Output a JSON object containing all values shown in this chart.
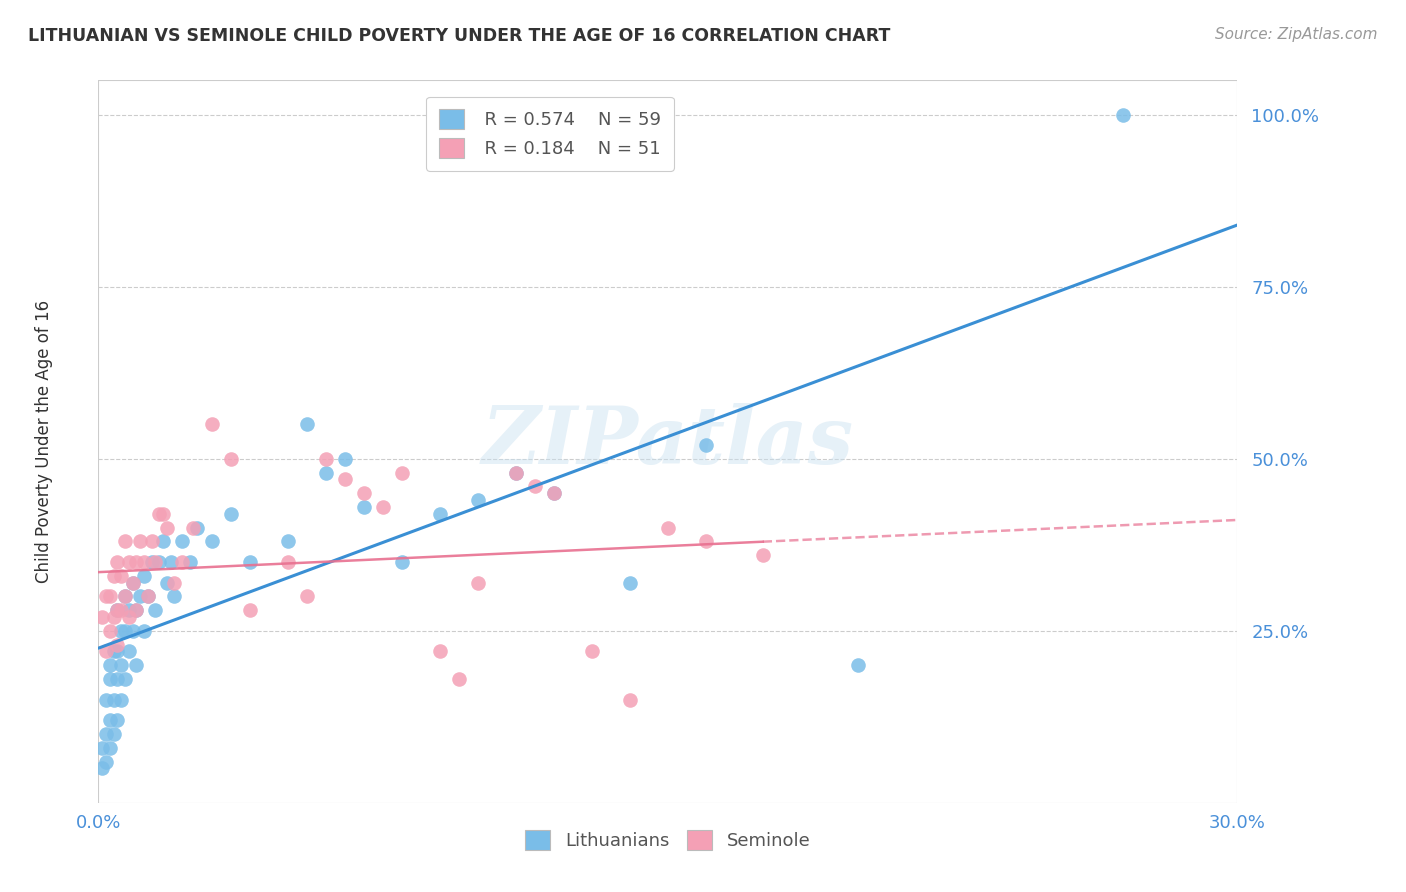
{
  "title": "LITHUANIAN VS SEMINOLE CHILD POVERTY UNDER THE AGE OF 16 CORRELATION CHART",
  "source": "Source: ZipAtlas.com",
  "ylabel": "Child Poverty Under the Age of 16",
  "x_min": 0.0,
  "x_max": 0.3,
  "y_min": 0.0,
  "y_max": 1.05,
  "y_ticks": [
    0.25,
    0.5,
    0.75,
    1.0
  ],
  "y_tick_labels": [
    "25.0%",
    "50.0%",
    "75.0%",
    "100.0%"
  ],
  "legend_r_blue": "R = 0.574",
  "legend_n_blue": "N = 59",
  "legend_r_pink": "R = 0.184",
  "legend_n_pink": "N = 51",
  "blue_color": "#7abde8",
  "pink_color": "#f4a0b5",
  "blue_line_color": "#3a8fd4",
  "pink_line_color": "#e87090",
  "blue_tick_color": "#4a90d9",
  "watermark_text": "ZIPatlas",
  "blue_scatter_x": [
    0.001,
    0.001,
    0.002,
    0.002,
    0.002,
    0.003,
    0.003,
    0.003,
    0.003,
    0.004,
    0.004,
    0.004,
    0.005,
    0.005,
    0.005,
    0.005,
    0.006,
    0.006,
    0.006,
    0.007,
    0.007,
    0.007,
    0.008,
    0.008,
    0.009,
    0.009,
    0.01,
    0.01,
    0.011,
    0.012,
    0.012,
    0.013,
    0.014,
    0.015,
    0.016,
    0.017,
    0.018,
    0.019,
    0.02,
    0.022,
    0.024,
    0.026,
    0.03,
    0.035,
    0.04,
    0.05,
    0.055,
    0.06,
    0.065,
    0.07,
    0.08,
    0.09,
    0.1,
    0.11,
    0.12,
    0.14,
    0.16,
    0.2,
    0.27
  ],
  "blue_scatter_y": [
    0.05,
    0.08,
    0.06,
    0.1,
    0.15,
    0.08,
    0.12,
    0.18,
    0.2,
    0.1,
    0.15,
    0.22,
    0.12,
    0.18,
    0.22,
    0.28,
    0.15,
    0.2,
    0.25,
    0.18,
    0.25,
    0.3,
    0.22,
    0.28,
    0.25,
    0.32,
    0.2,
    0.28,
    0.3,
    0.25,
    0.33,
    0.3,
    0.35,
    0.28,
    0.35,
    0.38,
    0.32,
    0.35,
    0.3,
    0.38,
    0.35,
    0.4,
    0.38,
    0.42,
    0.35,
    0.38,
    0.55,
    0.48,
    0.5,
    0.43,
    0.35,
    0.42,
    0.44,
    0.48,
    0.45,
    0.32,
    0.52,
    0.2,
    1.0
  ],
  "pink_scatter_x": [
    0.001,
    0.002,
    0.002,
    0.003,
    0.003,
    0.004,
    0.004,
    0.005,
    0.005,
    0.005,
    0.006,
    0.006,
    0.007,
    0.007,
    0.008,
    0.008,
    0.009,
    0.01,
    0.01,
    0.011,
    0.012,
    0.013,
    0.014,
    0.015,
    0.016,
    0.017,
    0.018,
    0.02,
    0.022,
    0.025,
    0.03,
    0.035,
    0.04,
    0.05,
    0.055,
    0.06,
    0.065,
    0.07,
    0.075,
    0.08,
    0.09,
    0.095,
    0.1,
    0.11,
    0.115,
    0.12,
    0.13,
    0.14,
    0.15,
    0.16,
    0.175
  ],
  "pink_scatter_y": [
    0.27,
    0.22,
    0.3,
    0.25,
    0.3,
    0.27,
    0.33,
    0.23,
    0.28,
    0.35,
    0.28,
    0.33,
    0.3,
    0.38,
    0.27,
    0.35,
    0.32,
    0.28,
    0.35,
    0.38,
    0.35,
    0.3,
    0.38,
    0.35,
    0.42,
    0.42,
    0.4,
    0.32,
    0.35,
    0.4,
    0.55,
    0.5,
    0.28,
    0.35,
    0.3,
    0.5,
    0.47,
    0.45,
    0.43,
    0.48,
    0.22,
    0.18,
    0.32,
    0.48,
    0.46,
    0.45,
    0.22,
    0.15,
    0.4,
    0.38,
    0.36
  ]
}
